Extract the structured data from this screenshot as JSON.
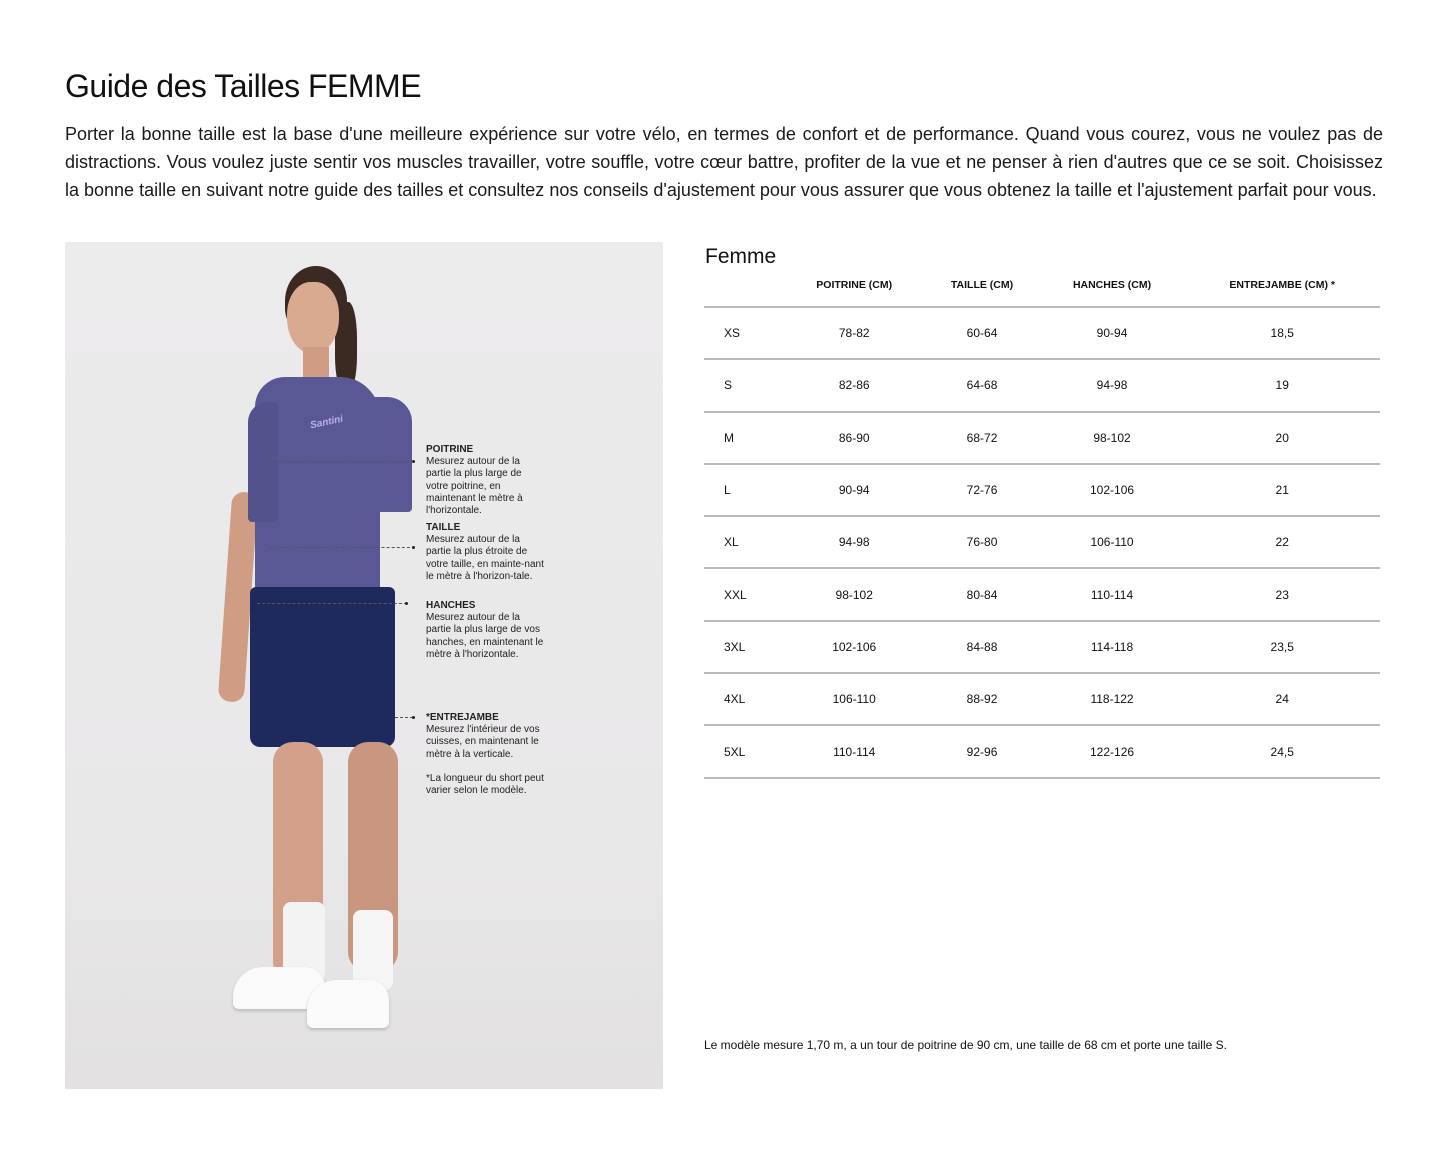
{
  "title": "Guide des Tailles FEMME",
  "intro": "Porter la bonne taille est la base d'une meilleure expérience sur votre vélo, en termes de confort et de performance. Quand vous courez, vous ne voulez pas de distractions. Vous voulez juste sentir vos muscles travailler, votre souffle, votre cœur battre, profiter de la vue et ne penser à rien d'autres que ce se soit. Choisissez la bonne taille en suivant notre guide des tailles et consultez nos conseils d'ajustement pour vous assurer que vous obtenez la taille et l'ajustement parfait pour vous.",
  "photo": {
    "jersey_brand": "Santini",
    "colors": {
      "jersey": "#5a5894",
      "shorts": "#1f2a5c",
      "background": "#ebe9ea"
    },
    "annotations": [
      {
        "title": "POITRINE",
        "text": "Mesurez autour de la partie la plus large de votre poitrine, en maintenant le mètre à l'horizontale."
      },
      {
        "title": "TAILLE",
        "text": "Mesurez autour de la partie la plus étroite de votre taille, en mainte-nant le mètre à l'horizon-tale."
      },
      {
        "title": "HANCHES",
        "text": "Mesurez autour de la partie la plus large de vos hanches, en maintenant le mètre à l'horizontale."
      },
      {
        "title": "*ENTREJAMBE",
        "text": "Mesurez l'intérieur de vos cuisses, en maintenant le mètre à la verticale.",
        "footnote": "*La longueur du short peut varier selon le modèle."
      }
    ]
  },
  "table": {
    "title": "Femme",
    "headers": [
      "",
      "POITRINE (CM)",
      "TAILLE (CM)",
      "HANCHES (CM)",
      "ENTREJAMBE (CM) *"
    ],
    "rows": [
      [
        "XS",
        "78-82",
        "60-64",
        "90-94",
        "18,5"
      ],
      [
        "S",
        "82-86",
        "64-68",
        "94-98",
        "19"
      ],
      [
        "M",
        "86-90",
        "68-72",
        "98-102",
        "20"
      ],
      [
        "L",
        "90-94",
        "72-76",
        "102-106",
        "21"
      ],
      [
        "XL",
        "94-98",
        "76-80",
        "106-110",
        "22"
      ],
      [
        "XXL",
        "98-102",
        "80-84",
        "110-114",
        "23"
      ],
      [
        "3XL",
        "102-106",
        "84-88",
        "114-118",
        "23,5"
      ],
      [
        "4XL",
        "106-110",
        "88-92",
        "118-122",
        "24"
      ],
      [
        "5XL",
        "110-114",
        "92-96",
        "122-126",
        "24,5"
      ]
    ]
  },
  "note": "Le modèle mesure 1,70 m, a un tour de poitrine de 90 cm, une taille de 68 cm et porte une taille S."
}
